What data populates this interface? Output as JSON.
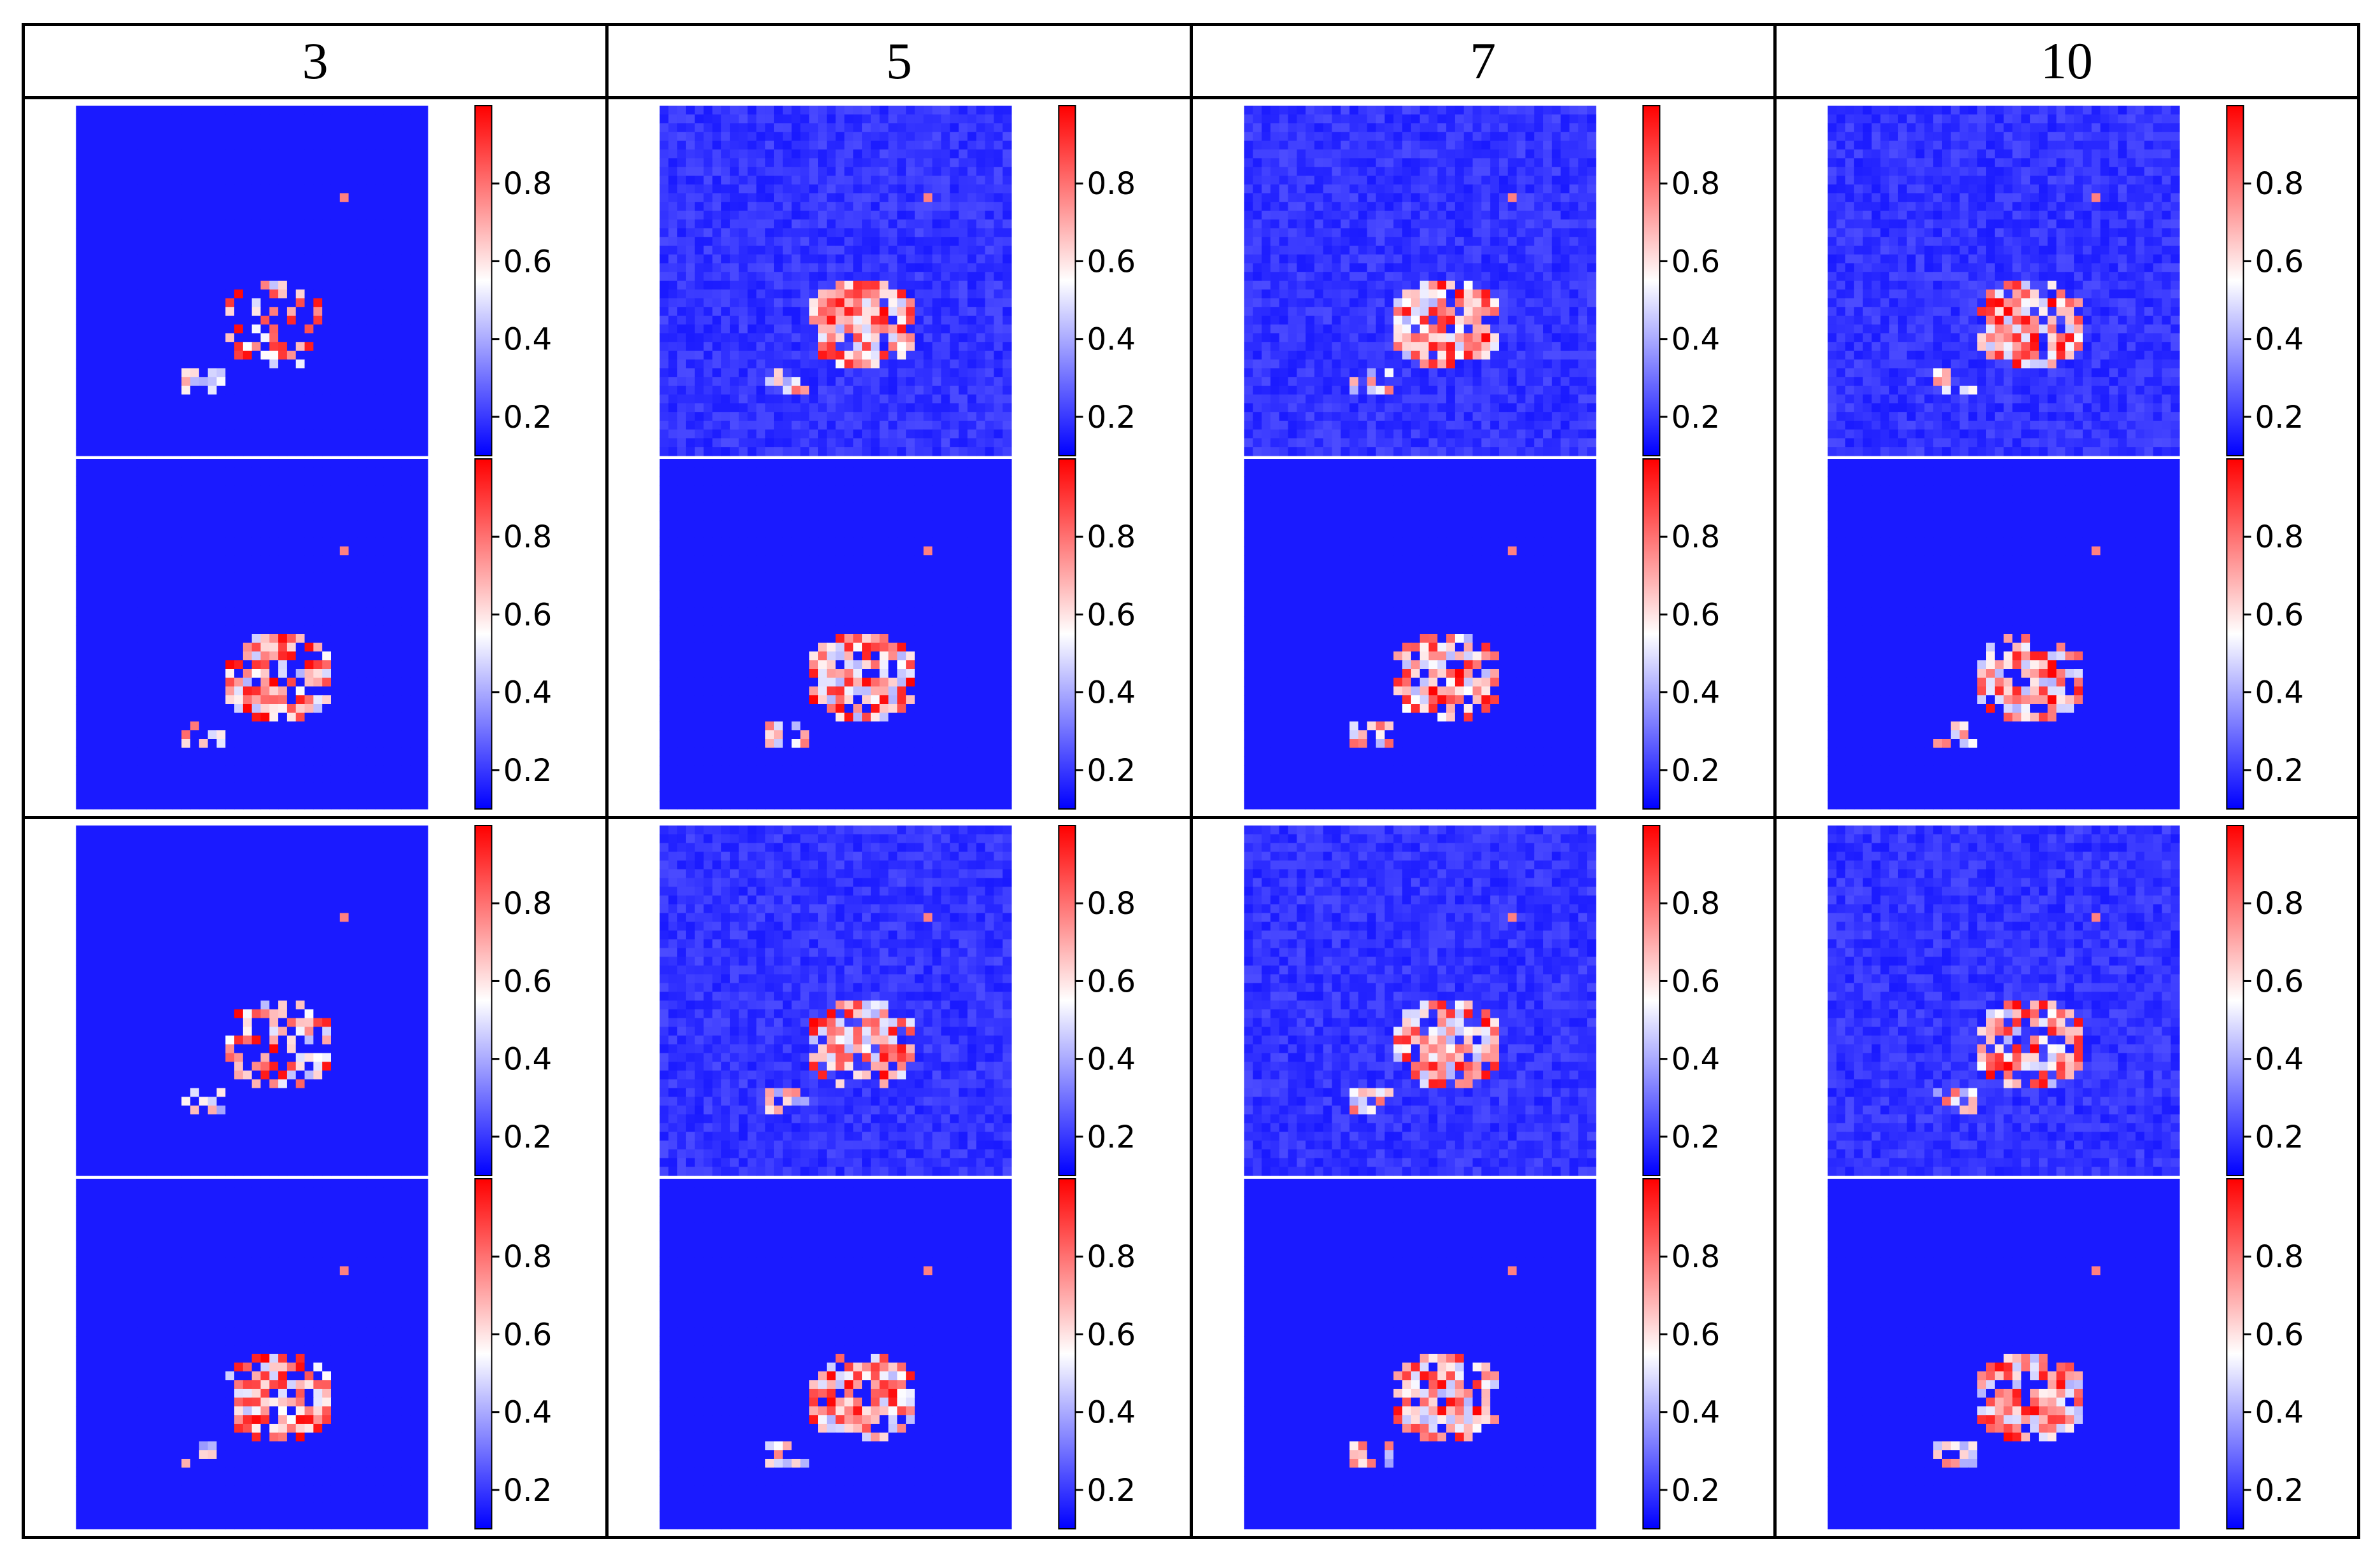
{
  "table": {
    "column_headers": [
      "3",
      "5",
      "7",
      "10"
    ]
  },
  "colors": {
    "low": "#0000ff",
    "mid": "#ffffff",
    "high": "#ff0000",
    "border": "#000000"
  },
  "chart_data": {
    "type": "heatmap",
    "layout": "grid of heatmaps, 2 row groups x 4 columns, each cell holds two stacked heatmaps with a colorbar",
    "columns": [
      "3",
      "5",
      "7",
      "10"
    ],
    "row_groups": 2,
    "panels_per_cell": 2,
    "colormap": "bwr",
    "colorbar": {
      "ticks": [
        0.2,
        0.4,
        0.6,
        0.8
      ],
      "tick_labels": [
        "0.2",
        "0.4",
        "0.6",
        "0.8"
      ],
      "range": [
        0.1,
        1.0
      ]
    },
    "heatmap_grid": [
      40,
      40
    ]
  }
}
